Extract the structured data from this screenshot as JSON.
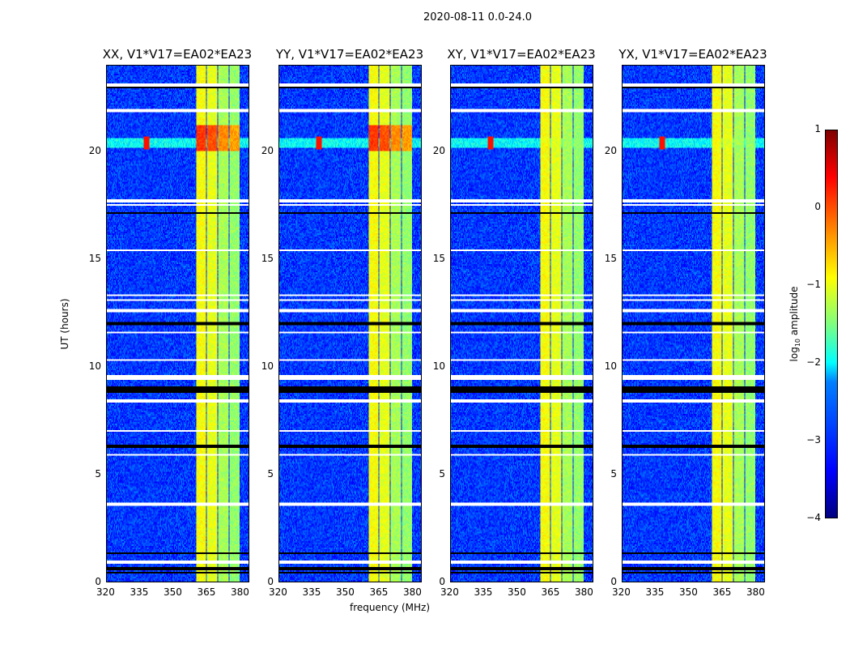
{
  "chart_data": {
    "type": "heatmap",
    "title": "2020-08-11 0.0-24.0",
    "xlabel": "frequency (MHz)",
    "ylabel": "UT (hours)",
    "xlim": [
      320,
      384
    ],
    "ylim": [
      0,
      24
    ],
    "xticks": [
      "320",
      "335",
      "350",
      "365",
      "380"
    ],
    "yticks": [
      "0",
      "5",
      "10",
      "15",
      "20"
    ],
    "panels": [
      {
        "title": "XX, V1*V17=EA02*EA23"
      },
      {
        "title": "YY, V1*V17=EA02*EA23"
      },
      {
        "title": "XY, V1*V17=EA02*EA23"
      },
      {
        "title": "YX, V1*V17=EA02*EA23"
      }
    ],
    "colorbar": {
      "label": "log10 amplitude",
      "label_main": "log",
      "label_sub": "10",
      "label_rest": " amplitude",
      "range": [
        -4,
        1
      ],
      "ticks": [
        "1",
        "0",
        "−1",
        "−2",
        "−3",
        "−4"
      ],
      "colormap": "jet"
    },
    "background_level": -3.1,
    "rfi_band_mhz": [
      360.5,
      380
    ],
    "rfi_subbands": [
      [
        360.5,
        364.8,
        -0.9
      ],
      [
        365.3,
        369.8,
        -1.0
      ],
      [
        370.4,
        374.8,
        -1.3
      ],
      [
        375.4,
        380,
        -1.4
      ]
    ],
    "rfi_burst": {
      "time_h": 20.4,
      "freq_mhz": 338,
      "level": 0.3
    },
    "flagged_white_hours": [
      23.1,
      21.9,
      17.7,
      17.5,
      15.4,
      13.3,
      13.1,
      12.6,
      11.6,
      10.3,
      9.5,
      8.4,
      7.0,
      5.9,
      3.6,
      0.9
    ],
    "flagged_black_hours": [
      23.0,
      17.15,
      12.0,
      9.0,
      8.85,
      6.3,
      1.3,
      0.6,
      0.4
    ]
  }
}
